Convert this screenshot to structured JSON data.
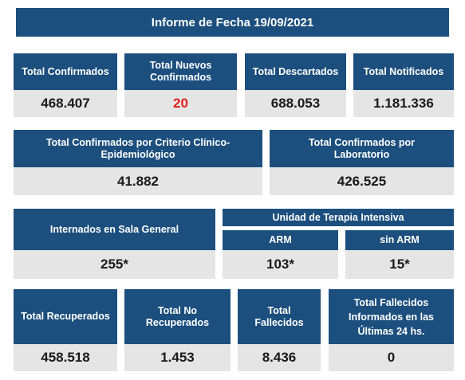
{
  "title": "Informe de Fecha 19/09/2021",
  "row1": [
    {
      "label": "Total Confirmados",
      "value": "468.407"
    },
    {
      "label": "Total Nuevos Confirmados",
      "value": "20"
    },
    {
      "label": "Total Descartados",
      "value": "688.053"
    },
    {
      "label": "Total Notificados",
      "value": "1.181.336"
    }
  ],
  "row2": [
    {
      "label": "Total Confirmados por Criterio Clínico-Epidemiológico",
      "value": "41.882"
    },
    {
      "label": "Total Confirmados por Laboratorio",
      "value": "426.525"
    }
  ],
  "row3": {
    "internados": {
      "label": "Internados en Sala General",
      "value": "255*"
    },
    "uti": {
      "label": "Unidad de Terapia Intensiva",
      "items": [
        {
          "label": "ARM",
          "value": "103*"
        },
        {
          "label": "sin ARM",
          "value": "15*"
        }
      ]
    }
  },
  "row4": [
    {
      "label": "Total Recuperados",
      "value": "458.518"
    },
    {
      "label": "Total No Recuperados",
      "value": "1.453"
    },
    {
      "label": "Total Fallecidos",
      "value": "8.436"
    },
    {
      "label": "Total Fallecidos Informados en las Últimas 24 hs.",
      "value": "0"
    }
  ]
}
